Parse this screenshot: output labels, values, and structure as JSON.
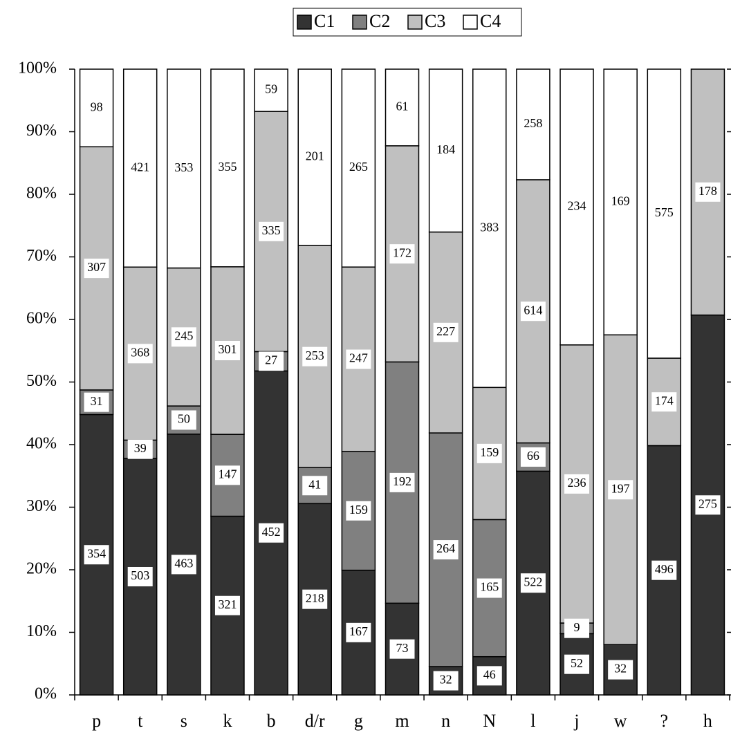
{
  "chart_data": {
    "type": "bar",
    "stacked": "percent",
    "categories": [
      "p",
      "t",
      "s",
      "k",
      "b",
      "d/r",
      "g",
      "m",
      "n",
      "N",
      "l",
      "j",
      "w",
      "?",
      "h"
    ],
    "series": [
      {
        "name": "C1",
        "color": "#333333",
        "values": [
          354,
          503,
          463,
          321,
          452,
          218,
          167,
          73,
          32,
          46,
          522,
          52,
          32,
          496,
          275
        ]
      },
      {
        "name": "C2",
        "color": "#808080",
        "values": [
          31,
          39,
          50,
          147,
          27,
          41,
          159,
          192,
          264,
          165,
          66,
          9,
          null,
          null,
          null
        ]
      },
      {
        "name": "C3",
        "color": "#c0c0c0",
        "values": [
          307,
          368,
          245,
          301,
          335,
          253,
          247,
          172,
          227,
          159,
          614,
          236,
          197,
          174,
          178
        ]
      },
      {
        "name": "C4",
        "color": "#ffffff",
        "values": [
          98,
          421,
          353,
          355,
          59,
          201,
          265,
          61,
          184,
          383,
          258,
          234,
          169,
          575,
          null
        ]
      }
    ],
    "ylim": [
      0,
      100
    ],
    "yticks": [
      {
        "value": 0,
        "label": "0%"
      },
      {
        "value": 10,
        "label": "10%"
      },
      {
        "value": 20,
        "label": "20%"
      },
      {
        "value": 30,
        "label": "30%"
      },
      {
        "value": 40,
        "label": "40%"
      },
      {
        "value": 50,
        "label": "50%"
      },
      {
        "value": 60,
        "label": "60%"
      },
      {
        "value": 70,
        "label": "70%"
      },
      {
        "value": 80,
        "label": "80%"
      },
      {
        "value": 90,
        "label": "90%"
      },
      {
        "value": 100,
        "label": "100%"
      }
    ],
    "legend": "top",
    "grid": false
  }
}
